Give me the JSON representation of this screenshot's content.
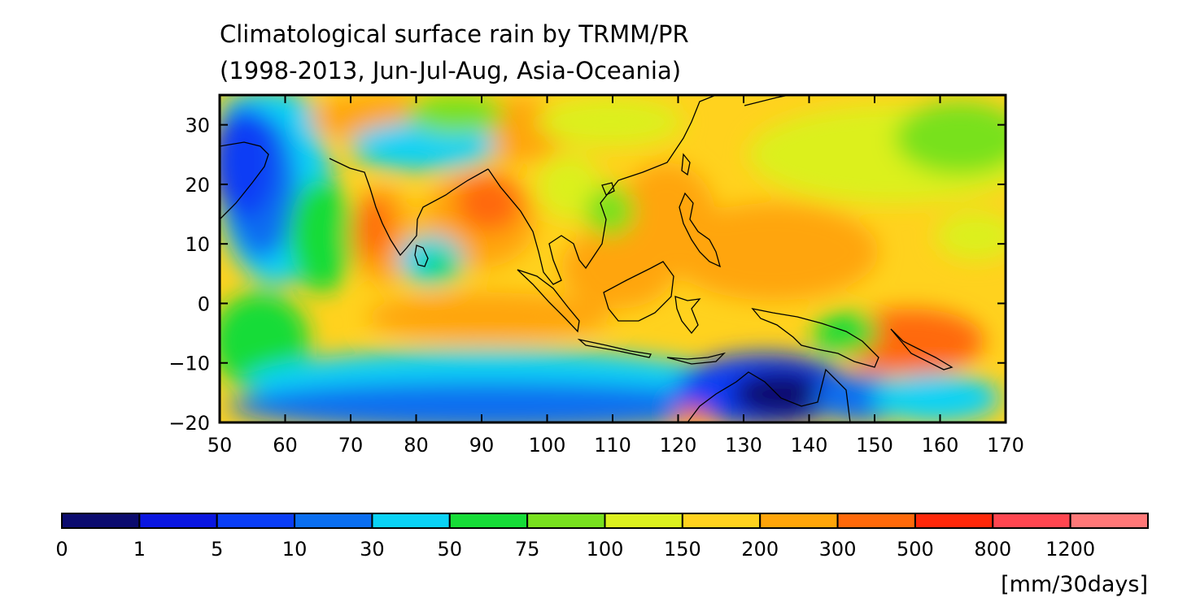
{
  "title": {
    "line1": "Climatological surface rain by TRMM/PR",
    "line2": "(1998-2013, Jun-Jul-Aug, Asia-Oceania)"
  },
  "map": {
    "lon_range": [
      50,
      170
    ],
    "lat_range": [
      -20,
      35
    ],
    "x_ticks": [
      "50",
      "60",
      "70",
      "80",
      "90",
      "100",
      "110",
      "120",
      "130",
      "140",
      "150",
      "160",
      "170"
    ],
    "y_ticks": [
      "30",
      "20",
      "10",
      "0",
      "−10",
      "−20"
    ]
  },
  "colorbar": {
    "labels": [
      "0",
      "1",
      "5",
      "10",
      "30",
      "50",
      "75",
      "100",
      "150",
      "200",
      "300",
      "500",
      "800",
      "1200"
    ],
    "colors": [
      "#0b0b6e",
      "#0a16e0",
      "#0a3df5",
      "#0a6ef0",
      "#0ad2f5",
      "#16dc37",
      "#78e11e",
      "#dcf01e",
      "#ffd21e",
      "#ffa50a",
      "#ff690a",
      "#ff280a",
      "#ff4650",
      "#ff7878"
    ],
    "unit": "[mm/30days]"
  }
}
